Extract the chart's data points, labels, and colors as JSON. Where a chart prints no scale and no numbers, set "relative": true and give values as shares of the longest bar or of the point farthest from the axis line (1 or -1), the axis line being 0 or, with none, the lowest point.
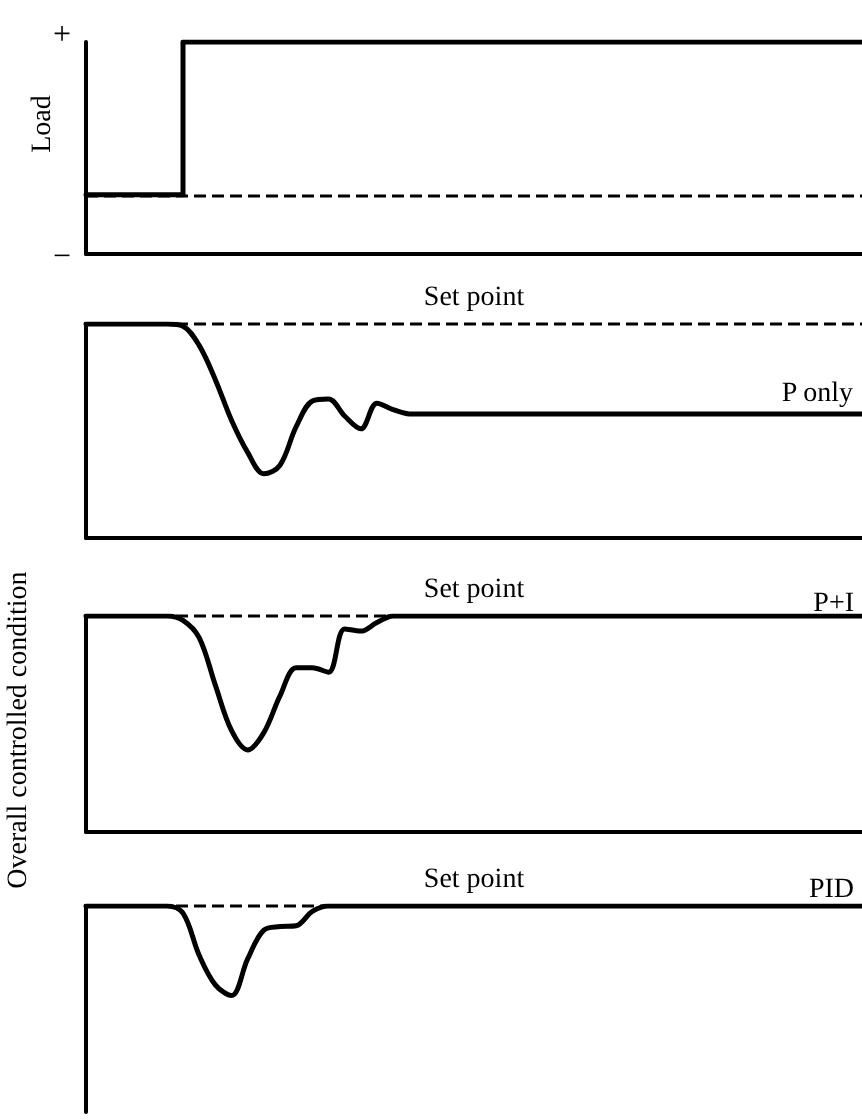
{
  "chart_data": [
    {
      "type": "step",
      "relative": true,
      "ylabel": "Load",
      "annotations": [
        "+",
        "−"
      ],
      "categories": [
        null,
        null,
        null,
        null,
        null,
        null,
        null,
        null,
        null,
        null,
        null,
        null,
        null,
        null,
        null,
        null,
        null,
        null,
        null,
        null,
        null,
        null,
        null,
        null,
        null,
        null,
        null,
        null,
        null,
        null,
        null,
        null,
        null,
        null,
        null,
        null,
        null,
        null,
        null,
        null,
        null,
        null,
        null,
        null,
        null,
        null,
        null,
        null,
        null
      ],
      "color": "#000000",
      "values": [
        0.28,
        0.28,
        0.28,
        0.28,
        0.28,
        0.28,
        1,
        1,
        1,
        1,
        1,
        1,
        1,
        1,
        1,
        1,
        1,
        1,
        1,
        1,
        1,
        1,
        1,
        1,
        1,
        1,
        1,
        1,
        1,
        1,
        1,
        1,
        1,
        1,
        1,
        1,
        1,
        1,
        1,
        1,
        1,
        1,
        1,
        1,
        1,
        1,
        1,
        1,
        1
      ],
      "ref_lines": [
        {
          "axis": "y",
          "value": 0.28,
          "label": null,
          "color": "#000000",
          "line_style": "dashed"
        }
      ]
    },
    {
      "type": "line",
      "relative": true,
      "categories": [
        null,
        null,
        null,
        null,
        null,
        null,
        null,
        null,
        null,
        null,
        null,
        null,
        null,
        null,
        null,
        null,
        null,
        null,
        null,
        null,
        null,
        null,
        null,
        null,
        null,
        null,
        null,
        null,
        null,
        null,
        null,
        null,
        null,
        null,
        null,
        null,
        null,
        null,
        null,
        null,
        null,
        null,
        null,
        null,
        null,
        null,
        null,
        null,
        null
      ],
      "series": [
        {
          "name": "P only",
          "color": "#000000",
          "values": [
            1,
            1,
            1,
            1,
            1,
            1,
            0.99,
            0.9,
            0.74,
            0.55,
            0.4,
            0.3,
            0.34,
            0.52,
            0.64,
            0.65,
            0.57,
            0.51,
            0.63,
            0.6,
            0.58,
            0.58,
            0.58,
            0.58,
            0.58,
            0.58,
            0.58,
            0.58,
            0.58,
            0.58,
            0.58,
            0.58,
            0.58,
            0.58,
            0.58,
            0.58,
            0.58,
            0.58,
            0.58,
            0.58,
            0.58,
            0.58,
            0.58,
            0.58,
            0.58,
            0.58,
            0.58,
            0.58,
            0.58
          ]
        }
      ],
      "ref_lines": [
        {
          "axis": "y",
          "value": 1,
          "label": "Set point",
          "color": "#000000",
          "line_style": "dashed"
        }
      ]
    },
    {
      "type": "line",
      "relative": true,
      "ylabel": "Overall controlled condition",
      "categories": [
        null,
        null,
        null,
        null,
        null,
        null,
        null,
        null,
        null,
        null,
        null,
        null,
        null,
        null,
        null,
        null,
        null,
        null,
        null,
        null,
        null,
        null,
        null,
        null,
        null,
        null,
        null,
        null,
        null,
        null,
        null,
        null,
        null,
        null,
        null,
        null,
        null,
        null,
        null,
        null,
        null,
        null,
        null,
        null,
        null,
        null,
        null,
        null,
        null
      ],
      "series": [
        {
          "name": "P+I",
          "color": "#000000",
          "values": [
            1,
            1,
            1,
            1,
            1,
            1,
            0.98,
            0.9,
            0.68,
            0.47,
            0.38,
            0.46,
            0.63,
            0.76,
            0.76,
            0.74,
            0.94,
            0.93,
            0.97,
            1,
            1,
            1,
            1,
            1,
            1,
            1,
            1,
            1,
            1,
            1,
            1,
            1,
            1,
            1,
            1,
            1,
            1,
            1,
            1,
            1,
            1,
            1,
            1,
            1,
            1,
            1,
            1,
            1,
            1
          ]
        }
      ],
      "ref_lines": [
        {
          "axis": "y",
          "value": 1,
          "label": "Set point",
          "color": "#000000",
          "line_style": "dashed"
        }
      ]
    },
    {
      "type": "line",
      "relative": true,
      "categories": [
        null,
        null,
        null,
        null,
        null,
        null,
        null,
        null,
        null,
        null,
        null,
        null,
        null,
        null,
        null,
        null,
        null,
        null,
        null,
        null,
        null,
        null,
        null,
        null,
        null,
        null,
        null,
        null,
        null,
        null,
        null,
        null,
        null,
        null,
        null,
        null,
        null,
        null,
        null,
        null,
        null,
        null,
        null,
        null,
        null,
        null,
        null,
        null,
        null
      ],
      "series": [
        {
          "name": "PID",
          "color": "#000000",
          "values": [
            1,
            1,
            1,
            1,
            1,
            1,
            0.92,
            0.45,
            0.12,
            0,
            0.41,
            0.73,
            0.77,
            0.78,
            0.94,
            1,
            1,
            1,
            1,
            1,
            1,
            1,
            1,
            1,
            1,
            1,
            1,
            1,
            1,
            1,
            1,
            1,
            1,
            1,
            1,
            1,
            1,
            1,
            1,
            1,
            1,
            1,
            1,
            1,
            1,
            1,
            1,
            1,
            1
          ]
        }
      ],
      "ref_lines": [
        {
          "axis": "y",
          "value": 1,
          "label": "Set point",
          "color": "#000000",
          "line_style": "dashed"
        }
      ]
    }
  ]
}
